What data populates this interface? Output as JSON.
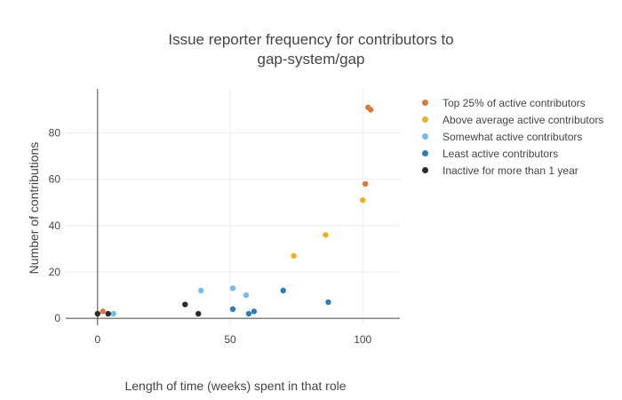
{
  "chart_data": {
    "type": "scatter",
    "title": "Issue reporter frequency for contributors to gap-system/gap",
    "title_lines": [
      "Issue reporter frequency for contributors to",
      "gap-system/gap"
    ],
    "xlabel": "Length of time (weeks) spent in that role",
    "ylabel": "Number of contributions",
    "xlim": [
      -12,
      114
    ],
    "ylim": [
      -3,
      99
    ],
    "xticks": [
      0,
      50,
      100
    ],
    "yticks": [
      0,
      20,
      40,
      60,
      80
    ],
    "grid": true,
    "legend_position": "right",
    "series": [
      {
        "name": "Top 25% of active contributors",
        "color": "#d9793a",
        "x": [
          102,
          103,
          101,
          2
        ],
        "y": [
          91,
          90,
          58,
          3
        ]
      },
      {
        "name": "Above average active contributors",
        "color": "#e9b02a",
        "x": [
          100,
          86,
          74
        ],
        "y": [
          51,
          36,
          27
        ]
      },
      {
        "name": "Somewhat active contributors",
        "color": "#74bce8",
        "x": [
          51,
          39,
          56,
          6
        ],
        "y": [
          13,
          12,
          10,
          2
        ]
      },
      {
        "name": "Least active contributors",
        "color": "#2e7eb5",
        "x": [
          70,
          87,
          51,
          57,
          59
        ],
        "y": [
          12,
          7,
          4,
          2,
          3
        ]
      },
      {
        "name": "Inactive for more than 1 year",
        "color": "#2b2b2b",
        "x": [
          0,
          4,
          33,
          38
        ],
        "y": [
          2,
          2,
          6,
          2
        ]
      }
    ]
  }
}
